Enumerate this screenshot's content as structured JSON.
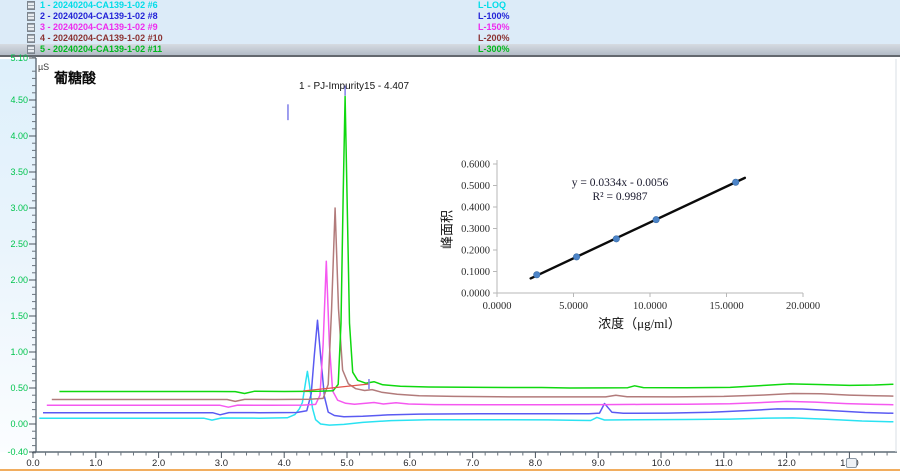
{
  "legend": {
    "rows": [
      {
        "icon": "chromatogram-icon",
        "name": "1 - 20240204-CA139-1-02 #6",
        "level": "L-LOQ",
        "color": "#00dce8",
        "selected": false
      },
      {
        "icon": "chromatogram-icon",
        "name": "2 - 20240204-CA139-1-02 #8",
        "level": "L-100%",
        "color": "#2323d8",
        "selected": false
      },
      {
        "icon": "chromatogram-icon",
        "name": "3 - 20240204-CA139-1-02 #9",
        "level": "L-150%",
        "color": "#ee2bee",
        "selected": false
      },
      {
        "icon": "chromatogram-icon",
        "name": "4 - 20240204-CA139-1-02 #10",
        "level": "L-200%",
        "color": "#8b3232",
        "selected": false
      },
      {
        "icon": "chromatogram-icon",
        "name": "5 - 20240204-CA139-1-02 #11",
        "level": "L-300%",
        "color": "#00b81e",
        "selected": true
      }
    ]
  },
  "chromatogram": {
    "unit": "µS",
    "title": "葡糖酸",
    "y_tick_labels": [
      "5.10",
      "4.50",
      "4.00",
      "3.50",
      "3.00",
      "2.50",
      "2.00",
      "1.50",
      "1.00",
      "0.50",
      "0.00",
      "-0.40"
    ],
    "x_tick_labels": [
      "0.0",
      "1.0",
      "2.0",
      "3.0",
      "4.0",
      "5.0",
      "6.0",
      "7.0",
      "8.0",
      "9.0",
      "10.0",
      "11.0",
      "12.0",
      "13.0"
    ],
    "y_axis_color": "#00c44e",
    "x_axis_color": "#26262b"
  },
  "chart_data": [
    {
      "type": "line",
      "title": "葡糖酸",
      "ylabel": "µS",
      "xlim": [
        0,
        13.75
      ],
      "ylim": [
        -0.4,
        5.1
      ],
      "grid": false,
      "peak_annotation": {
        "text": "1 - PJ-Impurity15 - 4.407",
        "peak_number": 1,
        "component": "PJ-Impurity15",
        "retention_time": 4.407
      },
      "integration_baseline": {
        "from": [
          4.3,
          0.458
        ],
        "to": [
          5.35,
          0.556
        ],
        "color": "#e0544a"
      },
      "delimiter_ticks": [
        {
          "t": 4.06,
          "v_bottom": 4.22,
          "v_top": 4.44
        },
        {
          "t": 4.97,
          "v_bottom": 4.56,
          "v_top": 4.7
        },
        {
          "t": 5.35,
          "v_bottom": 0.486,
          "v_top": 0.625
        }
      ],
      "series": [
        {
          "name": "20240204-CA139-1-02 #6",
          "level": "L-LOQ",
          "color": "#2ae2f2",
          "points": [
            [
              0.1,
              0.08
            ],
            [
              1.2,
              0.08
            ],
            [
              2.4,
              0.08
            ],
            [
              2.72,
              0.08
            ],
            [
              2.85,
              0.054
            ],
            [
              3.0,
              0.083
            ],
            [
              3.6,
              0.08
            ],
            [
              4.05,
              0.086
            ],
            [
              4.17,
              0.13
            ],
            [
              4.24,
              0.21
            ],
            [
              4.29,
              0.3
            ],
            [
              4.34,
              0.58
            ],
            [
              4.37,
              0.73
            ],
            [
              4.4,
              0.56
            ],
            [
              4.45,
              0.22
            ],
            [
              4.5,
              0.06
            ],
            [
              4.58,
              0.0
            ],
            [
              4.72,
              -0.015
            ],
            [
              4.95,
              -0.005
            ],
            [
              5.25,
              0.022
            ],
            [
              5.7,
              0.047
            ],
            [
              6.3,
              0.058
            ],
            [
              7.2,
              0.06
            ],
            [
              8.2,
              0.057
            ],
            [
              8.7,
              0.05
            ],
            [
              8.88,
              0.048
            ],
            [
              8.98,
              0.092
            ],
            [
              9.1,
              0.056
            ],
            [
              9.6,
              0.058
            ],
            [
              10.4,
              0.062
            ],
            [
              11.1,
              0.068
            ],
            [
              11.7,
              0.082
            ],
            [
              12.1,
              0.085
            ],
            [
              12.6,
              0.068
            ],
            [
              13.2,
              0.042
            ],
            [
              13.7,
              0.03
            ]
          ]
        },
        {
          "name": "20240204-CA139-1-02 #8",
          "level": "L-100%",
          "color": "#5a5af2",
          "points": [
            [
              0.16,
              0.157
            ],
            [
              1.2,
              0.157
            ],
            [
              2.55,
              0.157
            ],
            [
              2.86,
              0.157
            ],
            [
              2.98,
              0.128
            ],
            [
              3.12,
              0.159
            ],
            [
              3.6,
              0.157
            ],
            [
              4.2,
              0.16
            ],
            [
              4.36,
              0.185
            ],
            [
              4.43,
              0.42
            ],
            [
              4.48,
              0.95
            ],
            [
              4.53,
              1.44
            ],
            [
              4.58,
              0.95
            ],
            [
              4.64,
              0.38
            ],
            [
              4.7,
              0.165
            ],
            [
              4.8,
              0.118
            ],
            [
              4.95,
              0.102
            ],
            [
              5.25,
              0.108
            ],
            [
              5.65,
              0.126
            ],
            [
              6.15,
              0.138
            ],
            [
              7.1,
              0.142
            ],
            [
              8.1,
              0.143
            ],
            [
              8.85,
              0.143
            ],
            [
              9.02,
              0.152
            ],
            [
              9.1,
              0.285
            ],
            [
              9.22,
              0.163
            ],
            [
              9.4,
              0.149
            ],
            [
              10.1,
              0.152
            ],
            [
              10.8,
              0.162
            ],
            [
              11.4,
              0.188
            ],
            [
              11.85,
              0.21
            ],
            [
              12.25,
              0.208
            ],
            [
              12.75,
              0.183
            ],
            [
              13.25,
              0.16
            ],
            [
              13.7,
              0.149
            ]
          ]
        },
        {
          "name": "20240204-CA139-1-02 #9",
          "level": "L-150%",
          "color": "#f558f0",
          "points": [
            [
              0.22,
              0.26
            ],
            [
              1.3,
              0.26
            ],
            [
              2.65,
              0.26
            ],
            [
              2.98,
              0.26
            ],
            [
              3.11,
              0.233
            ],
            [
              3.26,
              0.262
            ],
            [
              3.75,
              0.26
            ],
            [
              4.3,
              0.262
            ],
            [
              4.5,
              0.272
            ],
            [
              4.57,
              0.4
            ],
            [
              4.62,
              1.1
            ],
            [
              4.67,
              2.26
            ],
            [
              4.72,
              1.1
            ],
            [
              4.77,
              0.46
            ],
            [
              4.85,
              0.33
            ],
            [
              4.98,
              0.288
            ],
            [
              5.12,
              0.274
            ],
            [
              5.3,
              0.288
            ],
            [
              5.43,
              0.298
            ],
            [
              5.58,
              0.278
            ],
            [
              5.78,
              0.294
            ],
            [
              5.98,
              0.278
            ],
            [
              6.4,
              0.27
            ],
            [
              7.2,
              0.268
            ],
            [
              8.2,
              0.268
            ],
            [
              9.1,
              0.27
            ],
            [
              9.7,
              0.272
            ],
            [
              10.4,
              0.273
            ],
            [
              11.1,
              0.28
            ],
            [
              11.65,
              0.3
            ],
            [
              12.0,
              0.314
            ],
            [
              12.45,
              0.304
            ],
            [
              12.95,
              0.284
            ],
            [
              13.4,
              0.272
            ],
            [
              13.7,
              0.268
            ]
          ]
        },
        {
          "name": "20240204-CA139-1-02 #10",
          "level": "L-200%",
          "color": "#b27b7b",
          "points": [
            [
              0.3,
              0.34
            ],
            [
              1.4,
              0.34
            ],
            [
              2.76,
              0.34
            ],
            [
              3.09,
              0.34
            ],
            [
              3.22,
              0.314
            ],
            [
              3.37,
              0.342
            ],
            [
              3.85,
              0.34
            ],
            [
              4.4,
              0.345
            ],
            [
              4.62,
              0.355
            ],
            [
              4.7,
              0.55
            ],
            [
              4.755,
              1.6
            ],
            [
              4.81,
              3.0
            ],
            [
              4.865,
              1.6
            ],
            [
              4.93,
              0.75
            ],
            [
              5.02,
              0.56
            ],
            [
              5.14,
              0.49
            ],
            [
              5.28,
              0.465
            ],
            [
              5.4,
              0.478
            ],
            [
              5.55,
              0.442
            ],
            [
              5.8,
              0.412
            ],
            [
              6.15,
              0.392
            ],
            [
              6.7,
              0.383
            ],
            [
              7.4,
              0.378
            ],
            [
              8.3,
              0.376
            ],
            [
              9.12,
              0.376
            ],
            [
              9.28,
              0.4
            ],
            [
              9.46,
              0.379
            ],
            [
              10.2,
              0.377
            ],
            [
              11.0,
              0.383
            ],
            [
              11.6,
              0.402
            ],
            [
              12.1,
              0.424
            ],
            [
              12.55,
              0.42
            ],
            [
              13.0,
              0.401
            ],
            [
              13.4,
              0.391
            ],
            [
              13.7,
              0.388
            ]
          ]
        },
        {
          "name": "20240204-CA139-1-02 #11",
          "level": "L-300%",
          "color": "#0fd80f",
          "points": [
            [
              0.42,
              0.452
            ],
            [
              1.5,
              0.452
            ],
            [
              2.88,
              0.452
            ],
            [
              3.22,
              0.45
            ],
            [
              3.37,
              0.424
            ],
            [
              3.53,
              0.455
            ],
            [
              4.0,
              0.452
            ],
            [
              4.55,
              0.456
            ],
            [
              4.78,
              0.462
            ],
            [
              4.86,
              0.55
            ],
            [
              4.905,
              1.4
            ],
            [
              4.94,
              3.2
            ],
            [
              4.97,
              4.55
            ],
            [
              5.0,
              3.2
            ],
            [
              5.04,
              1.4
            ],
            [
              5.09,
              0.72
            ],
            [
              5.17,
              0.607
            ],
            [
              5.3,
              0.567
            ],
            [
              5.43,
              0.588
            ],
            [
              5.57,
              0.545
            ],
            [
              5.85,
              0.524
            ],
            [
              6.3,
              0.514
            ],
            [
              7.2,
              0.509
            ],
            [
              8.1,
              0.507
            ],
            [
              8.55,
              0.5
            ],
            [
              9.1,
              0.502
            ],
            [
              9.47,
              0.504
            ],
            [
              9.58,
              0.531
            ],
            [
              9.72,
              0.505
            ],
            [
              10.4,
              0.503
            ],
            [
              11.1,
              0.509
            ],
            [
              11.65,
              0.536
            ],
            [
              12.05,
              0.557
            ],
            [
              12.5,
              0.549
            ],
            [
              13.0,
              0.536
            ],
            [
              13.4,
              0.541
            ],
            [
              13.7,
              0.553
            ]
          ]
        }
      ]
    },
    {
      "type": "scatter",
      "x": [
        2.6,
        5.2,
        7.8,
        10.4,
        15.6
      ],
      "y": [
        0.085,
        0.168,
        0.252,
        0.341,
        0.515
      ],
      "trendline": {
        "equation": "y = 0.0334x - 0.0056",
        "r2": "R² = 0.9987",
        "x_start": 2.2,
        "x_end": 16.2,
        "color": "#0b0b0b"
      },
      "xlabel": "浓度（μg/ml）",
      "ylabel": "峰面积",
      "xlim": [
        0,
        20
      ],
      "ylim": [
        0,
        0.6
      ],
      "x_tick_labels": [
        "0.0000",
        "5.0000",
        "10.0000",
        "15.0000",
        "20.0000"
      ],
      "y_tick_labels": [
        "0.0000",
        "0.1000",
        "0.2000",
        "0.3000",
        "0.4000",
        "0.5000",
        "0.6000"
      ],
      "marker_color": "#4c84c8",
      "grid": false,
      "legend_position": "none"
    }
  ]
}
